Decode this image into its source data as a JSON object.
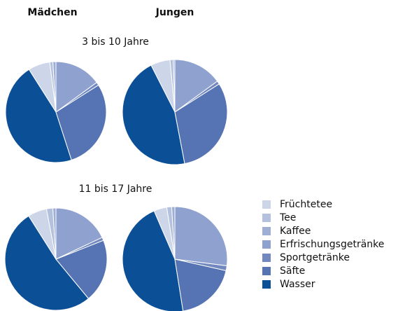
{
  "columns": [
    "Mädchen",
    "Jungen"
  ],
  "rows": [
    "3 bis 10 Jahre",
    "11 bis 17 Jahre"
  ],
  "categories": [
    "Früchtetee",
    "Tee",
    "Kaffee",
    "Erfrischungsgetränke",
    "Sportgetränke",
    "Säfte",
    "Wasser"
  ],
  "colors": [
    "#cdd5e8",
    "#b3c0de",
    "#9eaed5",
    "#8fa2cf",
    "#7289c0",
    "#5674b3",
    "#0b4f96"
  ],
  "chart_data": [
    {
      "type": "pie",
      "values": [
        7,
        1,
        1,
        15,
        1,
        29,
        46
      ]
    },
    {
      "type": "pie",
      "values": [
        6,
        1,
        0.5,
        15,
        1,
        31,
        45.5
      ]
    },
    {
      "type": "pie",
      "values": [
        6,
        2,
        1,
        18,
        1,
        20,
        52
      ]
    },
    {
      "type": "pie",
      "values": [
        4,
        1.5,
        1,
        27,
        1.5,
        19,
        46
      ]
    }
  ]
}
